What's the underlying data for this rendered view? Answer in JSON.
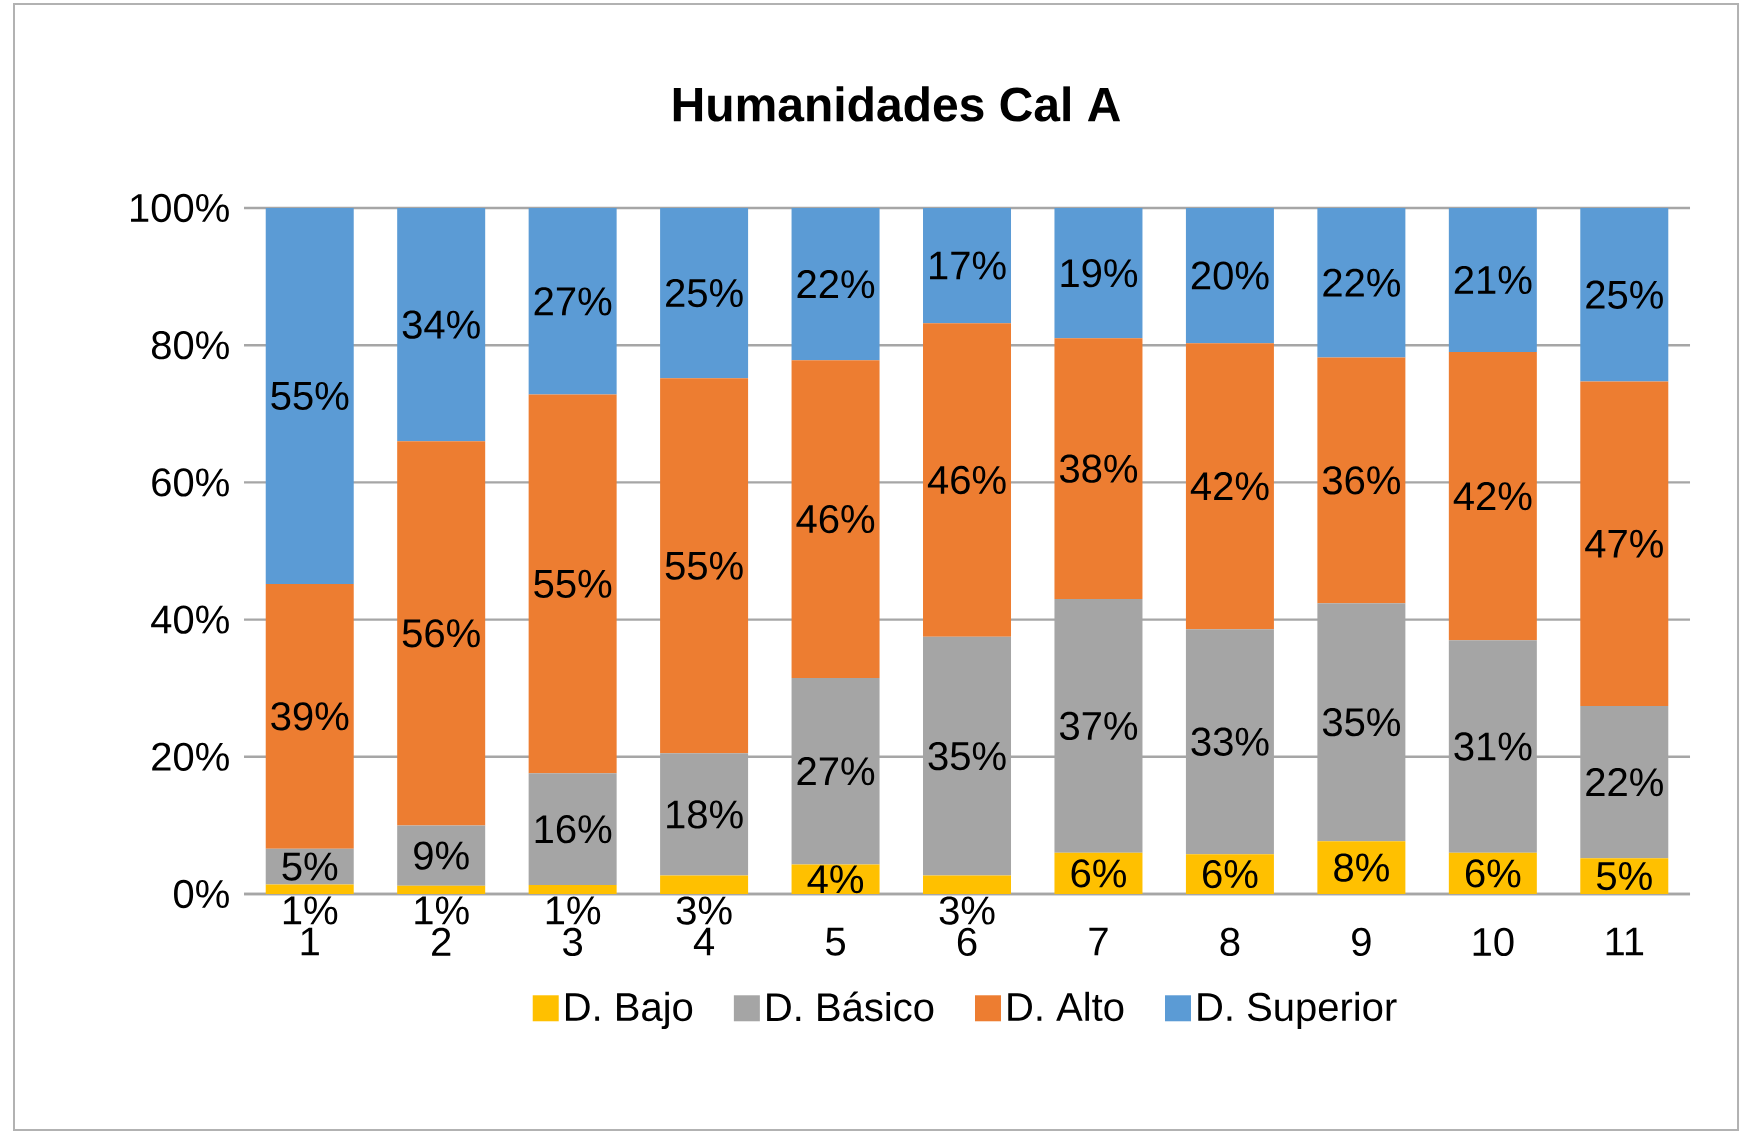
{
  "chart_data": {
    "type": "bar",
    "stacked": true,
    "title": "Humanidades Cal A",
    "categories": [
      "1",
      "2",
      "3",
      "4",
      "5",
      "6",
      "7",
      "8",
      "9",
      "10",
      "11"
    ],
    "series": [
      {
        "name": "D. Bajo",
        "color": "#ffc000",
        "values": [
          1.4,
          1.2,
          1.3,
          2.7,
          4.3,
          2.7,
          6,
          5.8,
          7.7,
          6,
          5.2
        ],
        "value_labels": [
          "1%",
          "1%",
          "1%",
          "3%",
          "4%",
          "3%",
          "6%",
          "6%",
          "8%",
          "6%",
          "5%"
        ]
      },
      {
        "name": "D. Básico",
        "color": "#a5a5a5",
        "values": [
          5.2,
          8.8,
          16.3,
          17.8,
          27.2,
          34.8,
          37,
          32.8,
          34.7,
          31,
          22.2
        ],
        "value_labels": [
          "5%",
          "9%",
          "16%",
          "18%",
          "27%",
          "35%",
          "37%",
          "33%",
          "35%",
          "31%",
          "22%"
        ]
      },
      {
        "name": "D. Alto",
        "color": "#ed7d31",
        "values": [
          38.6,
          56,
          55.2,
          54.7,
          46.3,
          45.7,
          38,
          41.7,
          35.8,
          42,
          47.3
        ],
        "value_labels": [
          "39%",
          "56%",
          "55%",
          "55%",
          "46%",
          "46%",
          "38%",
          "42%",
          "36%",
          "42%",
          "47%"
        ]
      },
      {
        "name": "D. Superior",
        "color": "#5b9bd5",
        "values": [
          54.8,
          34,
          27.2,
          24.8,
          22.2,
          16.8,
          19,
          19.7,
          21.8,
          21,
          25.3
        ],
        "value_labels": [
          "55%",
          "34%",
          "27%",
          "25%",
          "22%",
          "17%",
          "19%",
          "20%",
          "22%",
          "21%",
          "25%"
        ]
      }
    ],
    "ylim": [
      0,
      100
    ],
    "yticks": [
      {
        "value": 0,
        "label": "0%"
      },
      {
        "value": 20,
        "label": "20%"
      },
      {
        "value": 40,
        "label": "40%"
      },
      {
        "value": 60,
        "label": "60%"
      },
      {
        "value": 80,
        "label": "80%"
      },
      {
        "value": 100,
        "label": "100%"
      }
    ],
    "grid": "y",
    "legend": "bottom"
  }
}
